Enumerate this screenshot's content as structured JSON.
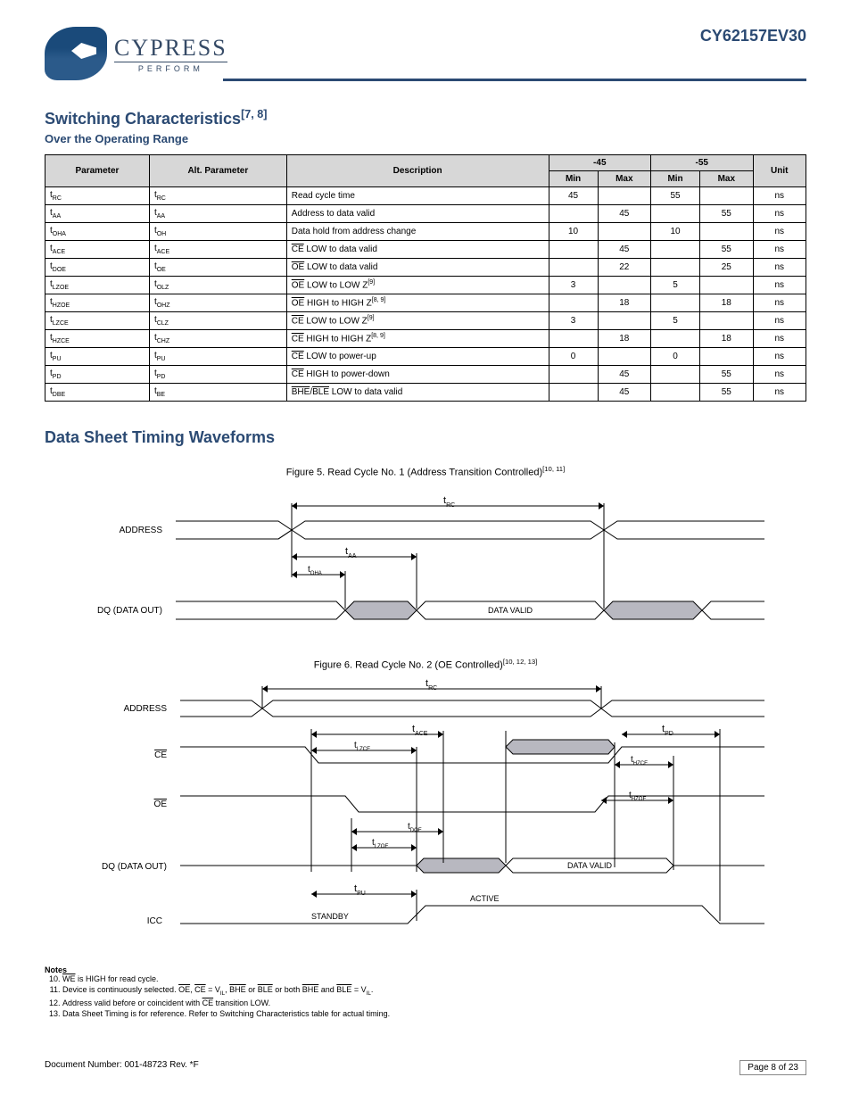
{
  "logo": {
    "name": "CYPRESS",
    "tagline": "PERFORM"
  },
  "part_number": "CY62157EV30",
  "sections": {
    "switching_title": "Switching Characteristics",
    "switching_sub": "Over the Operating Range",
    "timing_title": "Data Sheet Timing Waveforms",
    "figure1_title": "Figure 5. Read Cycle No. 1 (Address Transition Controlled)",
    "figure1_sup": "[10, 11]",
    "figure2_title": "Figure 6. Read Cycle No. 2 (OE Controlled)",
    "figure2_sup": "[10, 12, 13]"
  },
  "table": {
    "header_groups": [
      "Parameter",
      "Alt. Parameter",
      "Description",
      "-45",
      "-55",
      "Unit"
    ],
    "header_sub": [
      "Min",
      "Max",
      "Min",
      "Max"
    ],
    "rows": [
      {
        "param": "t_RC",
        "sub": "RC",
        "alt": "t_RC",
        "altsub": "RC",
        "desc": "Read cycle time",
        "v": [
          "45",
          "",
          "55",
          ""
        ],
        "unit": "ns"
      },
      {
        "param": "t_AA",
        "sub": "AA",
        "alt": "t_AA",
        "altsub": "AA",
        "desc": "Address to data valid",
        "v": [
          "",
          "45",
          "",
          "55"
        ],
        "unit": "ns"
      },
      {
        "param": "t_OHA",
        "sub": "OHA",
        "alt": "t_OH",
        "altsub": "OH",
        "desc": "Data hold from address change",
        "v": [
          "10",
          "",
          "10",
          ""
        ],
        "unit": "ns"
      },
      {
        "param": "t_ACE",
        "sub": "ACE",
        "alt": "t_ACE",
        "altsub": "ACE",
        "desc": "CE LOW to data valid",
        "v": [
          "",
          "45",
          "",
          "55"
        ],
        "unit": "ns"
      },
      {
        "param": "t_DOE",
        "sub": "DOE",
        "alt": "t_OE",
        "altsub": "OE",
        "desc": "OE LOW to data valid",
        "v": [
          "",
          "22",
          "",
          "25"
        ],
        "unit": "ns"
      },
      {
        "param": "t_LZOE",
        "sub": "LZOE",
        "alt": "t_OLZ",
        "altsub": "OLZ",
        "desc": "OE LOW to LOW Z",
        "sup": "[9]",
        "v": [
          "3",
          "",
          "5",
          ""
        ],
        "unit": "ns"
      },
      {
        "param": "t_HZOE",
        "sub": "HZOE",
        "alt": "t_OHZ",
        "altsub": "OHZ",
        "desc": "OE HIGH to HIGH Z",
        "sup": "[8, 9]",
        "v": [
          "",
          "18",
          "",
          "18"
        ],
        "unit": "ns"
      },
      {
        "param": "t_LZCE",
        "sub": "LZCE",
        "alt": "t_CLZ",
        "altsub": "CLZ",
        "desc": "CE LOW to LOW Z",
        "sup": "[9]",
        "v": [
          "3",
          "",
          "5",
          ""
        ],
        "unit": "ns"
      },
      {
        "param": "t_HZCE",
        "sub": "HZCE",
        "alt": "t_CHZ",
        "altsub": "CHZ",
        "desc": "CE HIGH to HIGH Z",
        "sup": "[8, 9]",
        "v": [
          "",
          "18",
          "",
          "18"
        ],
        "unit": "ns"
      },
      {
        "param": "t_PU",
        "sub": "PU",
        "alt": "t_PU",
        "altsub": "PU",
        "desc": "CE LOW to power-up",
        "v": [
          "0",
          "",
          "0",
          ""
        ],
        "unit": "ns"
      },
      {
        "param": "t_PD",
        "sub": "PD",
        "alt": "t_PD",
        "altsub": "PD",
        "desc": "CE HIGH to power-down",
        "v": [
          "",
          "45",
          "",
          "55"
        ],
        "unit": "ns"
      },
      {
        "param": "t_DBE",
        "sub": "DBE",
        "alt": "t_BE",
        "altsub": "BE",
        "desc": "BHE/BLE LOW to data valid",
        "v": [
          "",
          "45",
          "",
          "55"
        ],
        "unit": "ns"
      }
    ],
    "note_ref": "[7, 8]"
  },
  "timing1": {
    "signals": {
      "addr": "ADDRESS",
      "dq": "DQ (DATA OUT)"
    },
    "labels": {
      "trc": "t",
      "trc_sub": "RC",
      "taa": "t",
      "taa_sub": "AA",
      "toha": "t",
      "toha_sub": "OHA",
      "data_valid": "DATA VALID"
    },
    "colors": {
      "fill": "#b8b8c0",
      "stroke": "#000000"
    }
  },
  "timing2": {
    "signals": {
      "addr": "ADDRESS",
      "ce": "CE",
      "oe": "OE",
      "dq": "DQ (DATA OUT)",
      "icc": "ICC"
    },
    "labels": {
      "trc": "t",
      "trc_sub": "RC",
      "tace": "t",
      "tace_sub": "ACE",
      "tlzce": "t",
      "tlzce_sub": "LZCE",
      "thzce": "t",
      "thzce_sub": "HZCE",
      "tdoe": "t",
      "tdoe_sub": "DOE",
      "tlzoe": "t",
      "tlzoe_sub": "LZOE",
      "thzoe": "t",
      "thzoe_sub": "HZOE",
      "tpd": "t",
      "tpd_sub": "PD",
      "tpu": "t",
      "tpu_sub": "PU",
      "data_valid": "DATA VALID",
      "standby": "STANDBY",
      "active": "ACTIVE"
    },
    "colors": {
      "fill": "#b8b8c0",
      "stroke": "#000000"
    }
  },
  "notes": {
    "heading": "Notes",
    "items": [
      "WE is HIGH for read cycle.",
      "Device is continuously selected. OE, CE = V_IL, BHE or BLE or both BHE and BLE = V_IL.",
      "Address valid before or coincident with CE transition LOW.",
      "Data Sheet Timing is for reference. Refer to Switching Characteristics table for actual timing."
    ],
    "start": 10
  },
  "footer": {
    "doc": "Document Number: 001-48723 Rev. *F",
    "page": "Page 8 of 23"
  }
}
